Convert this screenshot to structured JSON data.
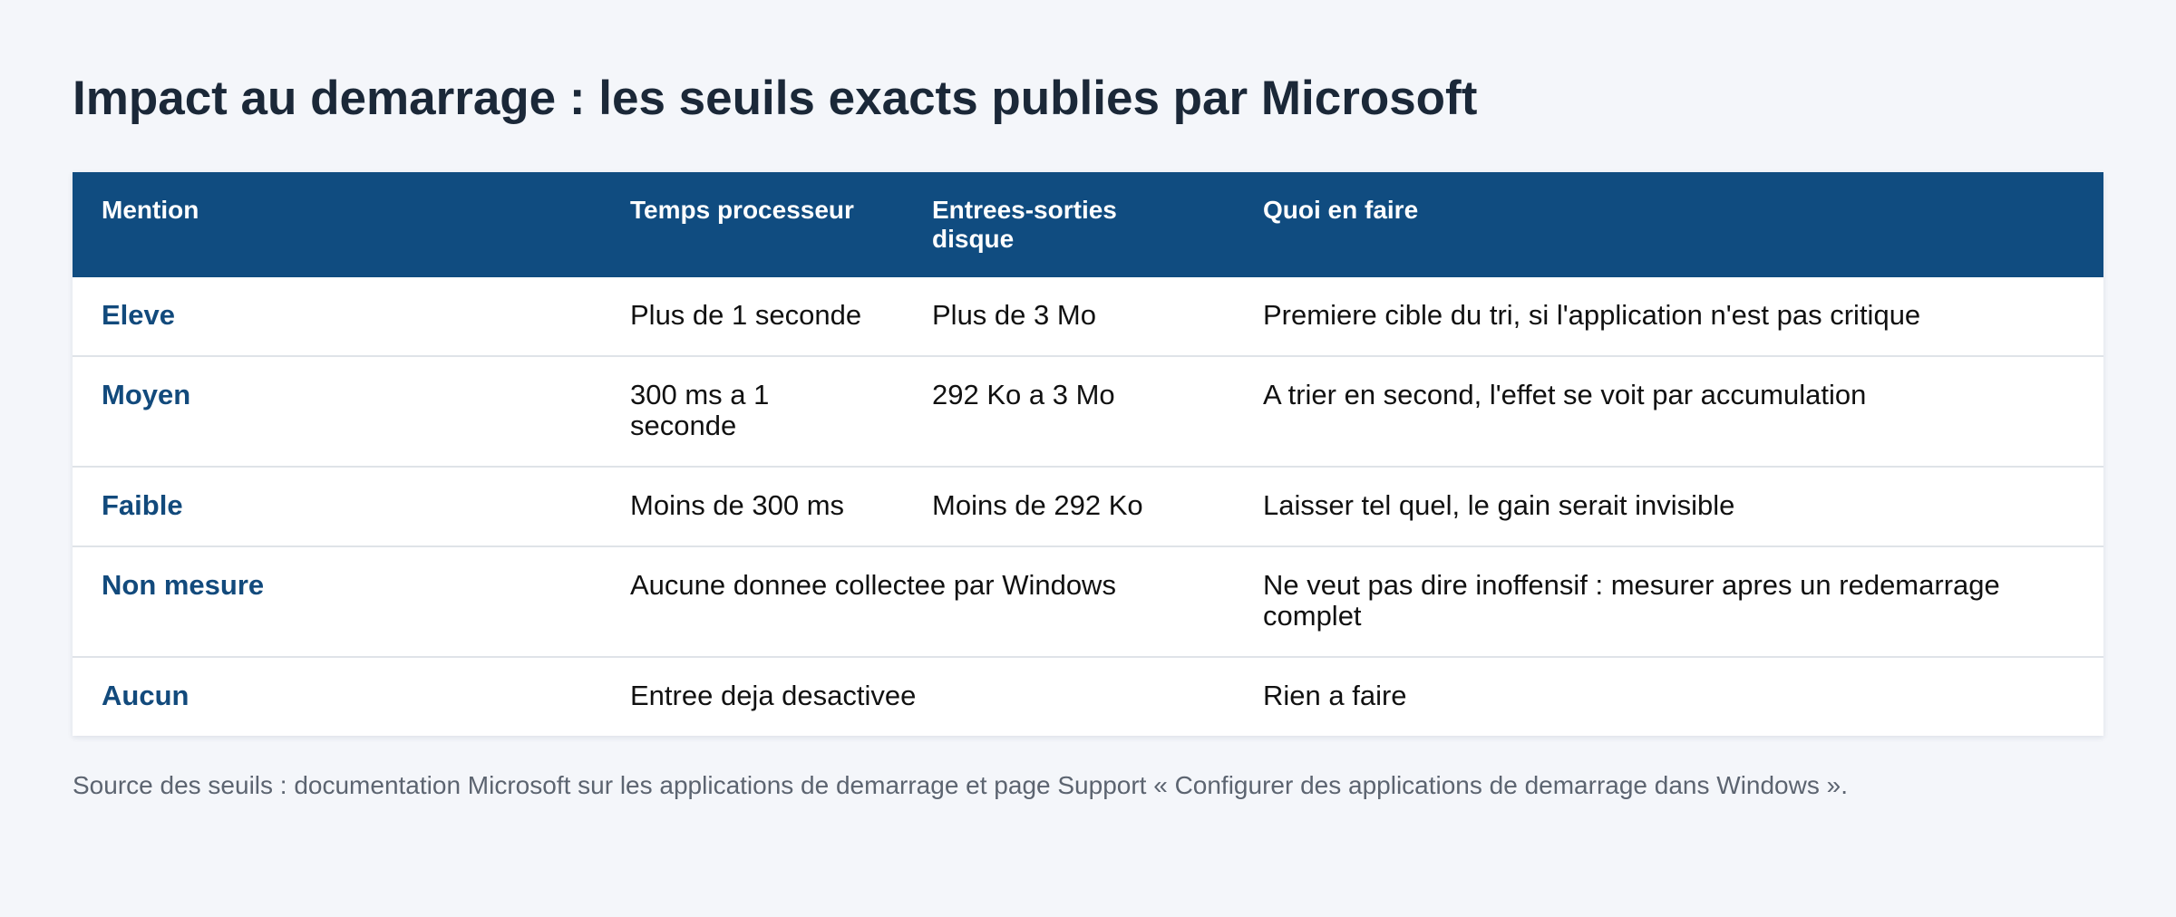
{
  "title": "Impact au demarrage : les seuils exacts publies par Microsoft",
  "table": {
    "headers": [
      "Mention",
      "Temps processeur",
      "Entrees-sorties disque",
      "Quoi en faire"
    ],
    "rows": [
      {
        "mention": "Eleve",
        "cpu": "Plus de 1 seconde",
        "disk": "Plus de 3 Mo",
        "action": "Premiere cible du tri, si l'application n'est pas critique"
      },
      {
        "mention": "Moyen",
        "cpu": "300 ms a 1 seconde",
        "disk": "292 Ko a 3 Mo",
        "action": "A trier en second, l'effet se voit par accumulation"
      },
      {
        "mention": "Faible",
        "cpu": "Moins de 300 ms",
        "disk": "Moins de 292 Ko",
        "action": "Laisser tel quel, le gain serait invisible"
      },
      {
        "mention": "Non mesure",
        "merged": "Aucune donnee collectee par Windows",
        "action": "Ne veut pas dire inoffensif : mesurer apres un redemarrage complet"
      },
      {
        "mention": "Aucun",
        "merged": "Entree deja desactivee",
        "action": "Rien a faire"
      }
    ]
  },
  "footnote": "Source des seuils : documentation Microsoft sur les applications de demarrage et page Support « Configurer des applications de demarrage dans Windows »."
}
